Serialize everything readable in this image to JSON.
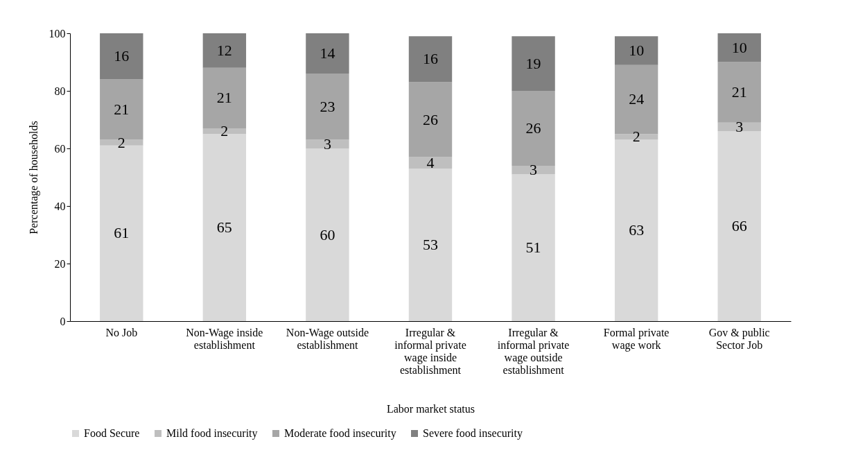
{
  "chart_data": {
    "type": "bar",
    "stacked": true,
    "xlabel": "Labor market status",
    "ylabel": "Percentage of households",
    "categories": [
      "No Job",
      "Non-Wage inside establishment",
      "Non-Wage outside establishment",
      "Irregular & informal private wage inside establishment",
      "Irregular & informal private wage outside establishment",
      "Formal private wage work",
      "Gov & public Sector Job"
    ],
    "series": [
      {
        "name": "Food Secure",
        "color": "#d9d9d9",
        "values": [
          61,
          65,
          60,
          53,
          51,
          63,
          66
        ]
      },
      {
        "name": "Mild food insecurity",
        "color": "#bfbfbf",
        "values": [
          2,
          2,
          3,
          4,
          3,
          2,
          3
        ]
      },
      {
        "name": "Moderate food insecurity",
        "color": "#a6a6a6",
        "values": [
          21,
          21,
          23,
          26,
          26,
          24,
          21
        ]
      },
      {
        "name": "Severe food insecurity",
        "color": "#808080",
        "values": [
          16,
          12,
          14,
          16,
          19,
          10,
          10
        ]
      }
    ],
    "ylim": [
      0,
      100
    ],
    "yticks": [
      0,
      20,
      40,
      60,
      80,
      100
    ],
    "data_labels": true,
    "legend": "bottom",
    "grid": false
  }
}
